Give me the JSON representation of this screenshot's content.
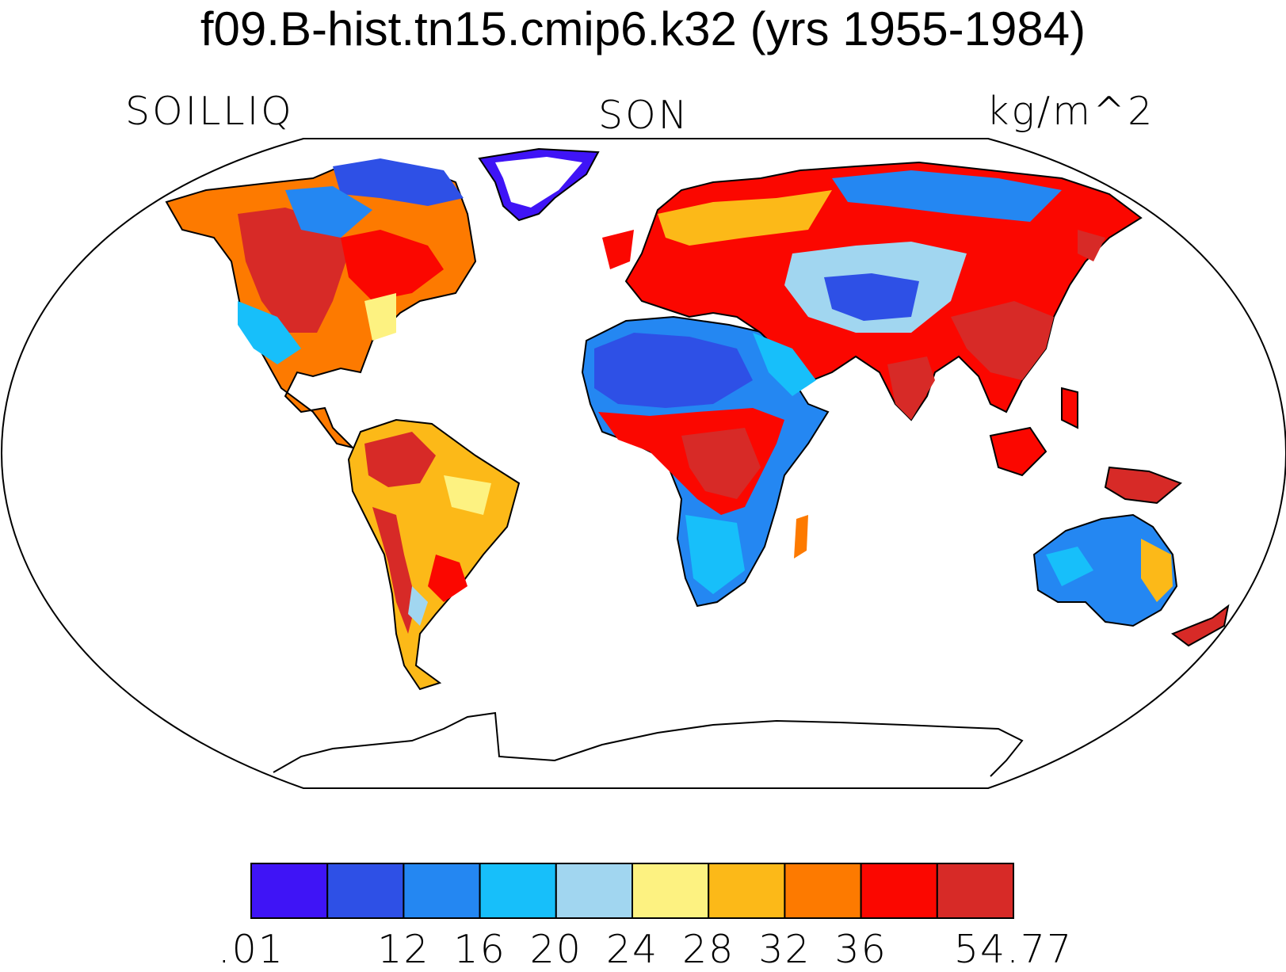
{
  "title": "f09.B-hist.tn15.cmip6.k32 (yrs 1955-1984)",
  "subtitle_left": "SOILLIQ",
  "subtitle_center": "SON",
  "subtitle_right": "kg/m^2",
  "colorbar": {
    "colors": [
      "#3f14f6",
      "#2e50e6",
      "#2487f2",
      "#17bffa",
      "#a1d6f0",
      "#fdf281",
      "#fcb918",
      "#fd7a00",
      "#fb0700",
      "#d72a27"
    ],
    "labels": [
      ".01",
      "12",
      "16",
      "20",
      "24",
      "28",
      "32",
      "36",
      "54.77"
    ],
    "label_boundary_index": [
      0,
      2,
      3,
      4,
      5,
      6,
      7,
      8,
      10
    ]
  },
  "land_color": "#ffffff",
  "ocean_color": "#ffffff"
}
